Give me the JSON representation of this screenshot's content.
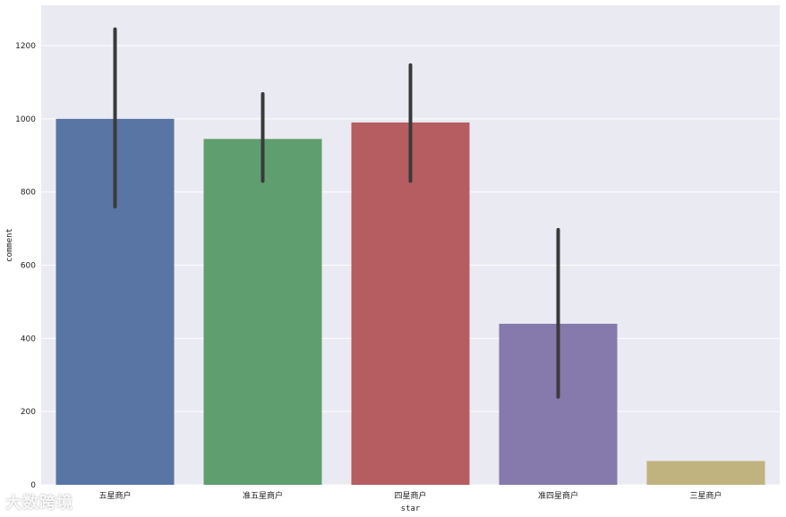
{
  "chart_data": {
    "type": "bar",
    "title": "",
    "xlabel": "star",
    "ylabel": "comment",
    "categories": [
      "五星商户",
      "准五星商户",
      "四星商户",
      "准四星商户",
      "三星商户"
    ],
    "values": [
      1000,
      945,
      990,
      440,
      65
    ],
    "error_low": [
      760,
      830,
      830,
      240,
      65
    ],
    "error_high": [
      1245,
      1068,
      1147,
      697,
      65
    ],
    "ylim": [
      0,
      1310
    ],
    "yticks": [
      0,
      200,
      400,
      600,
      800,
      1000,
      1200
    ],
    "grid": true,
    "legend": "none",
    "colors": [
      "#5875a4",
      "#5f9e6e",
      "#b55d60",
      "#857aab",
      "#c1b37f"
    ],
    "errorbar_color": "#3a3a3a",
    "background": "#eaeaf2"
  },
  "watermark": "大数跨境"
}
